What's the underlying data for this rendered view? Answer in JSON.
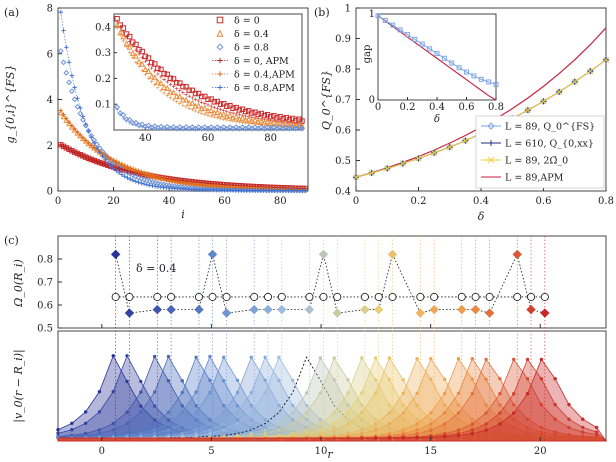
{
  "colors": {
    "delta0": "#cc2a2a",
    "delta04": "#e88a3a",
    "delta08": "#6f93d6",
    "apm0": "#b52020",
    "apm04": "#e06a1a",
    "apm08": "#3f6fcf",
    "L89": "#7fa7e8",
    "L610": "#1f2b7a",
    "L89b": "#f2cc3c",
    "APM": "#c8213c"
  },
  "chart_data": [
    {
      "id": "a",
      "panel_label": "(a)",
      "type": "scatter",
      "xlabel": "i",
      "ylabel": "g_{0,i}^{FS}",
      "xlim": [
        0,
        90
      ],
      "ylim": [
        0,
        8
      ],
      "xticks": [
        "0",
        "20",
        "40",
        "60",
        "80"
      ],
      "yticks": [
        "0",
        "2",
        "4",
        "6",
        "8"
      ],
      "series": [
        {
          "name": "δ = 0",
          "marker": "square",
          "color_key": "delta0",
          "start": 2.0,
          "decay": 0.035
        },
        {
          "name": "δ = 0.4",
          "marker": "triangle",
          "color_key": "delta04",
          "start": 3.4,
          "decay": 0.05
        },
        {
          "name": "δ = 0.8",
          "marker": "diamond",
          "color_key": "delta08",
          "start": 6.1,
          "decay": 0.085
        },
        {
          "name": "δ = 0, APM",
          "marker": "plus",
          "color_key": "apm0",
          "start": 2.0,
          "decay": 0.035
        },
        {
          "name": "δ = 0.4,APM",
          "marker": "plus",
          "color_key": "apm04",
          "start": 3.5,
          "decay": 0.052
        },
        {
          "name": "δ = 0.8,APM",
          "marker": "plus",
          "color_key": "apm08",
          "start": 7.8,
          "decay": 0.11
        }
      ],
      "inset": {
        "xlim": [
          30,
          90
        ],
        "ylim": [
          0,
          0.45
        ],
        "xticks": [
          "40",
          "60",
          "80"
        ],
        "yticks": [
          "0.1",
          "0.2",
          "0.3",
          "0.4"
        ],
        "series": [
          {
            "color_key": "delta0",
            "marker": "square",
            "at30": 0.44,
            "decay": 0.045
          },
          {
            "color_key": "delta04",
            "marker": "triangle",
            "at30": 0.42,
            "decay": 0.06
          },
          {
            "color_key": "delta08",
            "marker": "diamond",
            "at30": 0.1,
            "decay": 0.25
          }
        ]
      }
    },
    {
      "id": "b",
      "panel_label": "(b)",
      "type": "line",
      "xlabel": "δ",
      "ylabel": "Q_0^{FS}",
      "xlim": [
        0,
        0.8
      ],
      "ylim": [
        0.4,
        1.0
      ],
      "xticks": [
        "0",
        "0.2",
        "0.4",
        "0.6",
        "0.8"
      ],
      "yticks": [
        "0.4",
        "0.5",
        "0.6",
        "0.7",
        "0.8",
        "0.9",
        "1"
      ],
      "x": [
        0,
        0.05,
        0.1,
        0.15,
        0.2,
        0.25,
        0.3,
        0.35,
        0.4,
        0.45,
        0.5,
        0.55,
        0.6,
        0.65,
        0.7,
        0.75,
        0.8
      ],
      "series": [
        {
          "name": "L = 89, Q_0^{FS}",
          "color_key": "L89",
          "marker": "diamond",
          "values": [
            0.445,
            0.459,
            0.474,
            0.49,
            0.507,
            0.525,
            0.544,
            0.565,
            0.588,
            0.612,
            0.638,
            0.665,
            0.694,
            0.725,
            0.758,
            0.793,
            0.83
          ]
        },
        {
          "name": "L = 610, Q_{0,xx}",
          "color_key": "L610",
          "marker": "plus",
          "values": [
            0.445,
            0.459,
            0.474,
            0.49,
            0.507,
            0.525,
            0.544,
            0.565,
            0.588,
            0.612,
            0.638,
            0.665,
            0.694,
            0.725,
            0.758,
            0.793,
            0.83
          ]
        },
        {
          "name": "L = 89, 2Ω̄_0",
          "color_key": "L89b",
          "marker": "x",
          "values": [
            0.445,
            0.459,
            0.474,
            0.49,
            0.507,
            0.525,
            0.544,
            0.565,
            0.588,
            0.612,
            0.638,
            0.665,
            0.694,
            0.725,
            0.758,
            0.793,
            0.83
          ]
        },
        {
          "name": "L = 89,APM",
          "color_key": "APM",
          "marker": "none",
          "values": [
            0.445,
            0.46,
            0.476,
            0.494,
            0.513,
            0.534,
            0.557,
            0.582,
            0.609,
            0.638,
            0.67,
            0.705,
            0.743,
            0.785,
            0.83,
            0.88,
            0.935
          ]
        }
      ],
      "inset": {
        "xlabel": "δ",
        "ylabel": "gap",
        "xlim": [
          0,
          0.8
        ],
        "ylim": [
          0,
          1
        ],
        "xticks": [
          "0",
          "0.2",
          "0.4",
          "0.6",
          "0.8"
        ],
        "yticks": [
          "0",
          "1"
        ],
        "x": [
          0,
          0.05,
          0.1,
          0.15,
          0.2,
          0.25,
          0.3,
          0.35,
          0.4,
          0.45,
          0.5,
          0.55,
          0.6,
          0.65,
          0.7,
          0.75,
          0.8
        ],
        "gap_L89": [
          0.98,
          0.925,
          0.87,
          0.815,
          0.76,
          0.705,
          0.65,
          0.595,
          0.54,
          0.485,
          0.43,
          0.375,
          0.325,
          0.28,
          0.24,
          0.21,
          0.18
        ],
        "gap_APM": [
          0.98,
          0.918,
          0.856,
          0.794,
          0.732,
          0.67,
          0.608,
          0.546,
          0.484,
          0.422,
          0.36,
          0.298,
          0.236,
          0.174,
          0.112,
          0.05,
          0.0
        ]
      }
    },
    {
      "id": "c",
      "panel_label": "(c)",
      "type": "scatter",
      "annotation": "δ = 0.4",
      "xlabel": "r",
      "ylabel_top": "Ω_0(R_i)",
      "ylabel_bottom": "|v_0(r − R_i)|",
      "xlim": [
        -2,
        23
      ],
      "top_ylim": [
        0.5,
        0.9
      ],
      "top_yticks": [
        "0.5",
        "0.6",
        "0.7",
        "0.8"
      ],
      "xticks": [
        "0",
        "5",
        "10",
        "15",
        "20"
      ],
      "sites": [
        0.63,
        1.26,
        2.53,
        3.16,
        4.43,
        5.05,
        5.69,
        6.95,
        7.58,
        8.21,
        9.47,
        10.11,
        10.74,
        12.0,
        12.63,
        13.26,
        14.53,
        15.16,
        16.42,
        17.05,
        17.69,
        18.95,
        19.58,
        20.21
      ],
      "omega": [
        0.82,
        0.565,
        0.58,
        0.58,
        0.58,
        0.82,
        0.565,
        0.58,
        0.58,
        0.58,
        0.58,
        0.82,
        0.565,
        0.58,
        0.58,
        0.82,
        0.565,
        0.58,
        0.58,
        0.58,
        0.565,
        0.82,
        0.58,
        0.565
      ],
      "omega_dashed": [
        0.635,
        0.635,
        0.635,
        0.635,
        0.635,
        0.635,
        0.635,
        0.635,
        0.635,
        0.635,
        0.635,
        0.635,
        0.635,
        0.635,
        0.635,
        0.635,
        0.635,
        0.635,
        0.635,
        0.635,
        0.635,
        0.635,
        0.635,
        0.635
      ],
      "wave_highlight_index": 10
    }
  ]
}
